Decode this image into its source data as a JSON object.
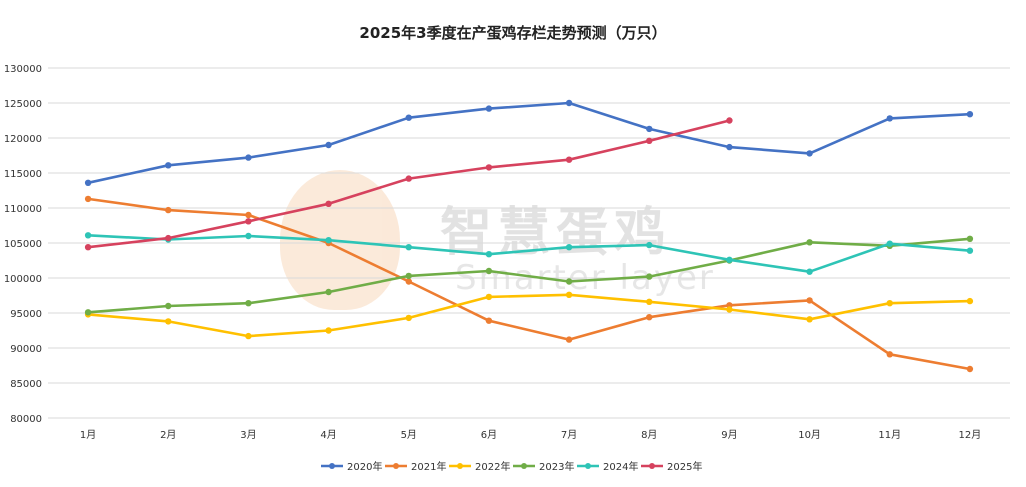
{
  "watermark": {
    "cn": "智慧蛋鸡",
    "en": "Smarter layer"
  },
  "chart_data": {
    "type": "line",
    "title": "2025年3季度在产蛋鸡存栏走势预测（万只）",
    "categories": [
      "1月",
      "2月",
      "3月",
      "4月",
      "5月",
      "6月",
      "7月",
      "8月",
      "9月",
      "10月",
      "11月",
      "12月"
    ],
    "ylim": [
      80000,
      130000
    ],
    "yticks": [
      80000,
      85000,
      90000,
      95000,
      100000,
      105000,
      110000,
      115000,
      120000,
      125000,
      130000
    ],
    "grid": true,
    "legend_position": "bottom",
    "series": [
      {
        "name": "2020年",
        "color": "#4472c4",
        "values": [
          113600,
          116100,
          117200,
          119000,
          122900,
          124200,
          125000,
          121300,
          118700,
          117800,
          122800,
          123400
        ]
      },
      {
        "name": "2021年",
        "color": "#ed7d31",
        "values": [
          111300,
          109700,
          109000,
          105000,
          99500,
          93900,
          91200,
          94400,
          96100,
          96800,
          89100,
          87000
        ]
      },
      {
        "name": "2022年",
        "color": "#ffc000",
        "values": [
          94800,
          93800,
          91700,
          92500,
          94300,
          97300,
          97600,
          96600,
          95500,
          94100,
          96400,
          96700
        ]
      },
      {
        "name": "2023年",
        "color": "#70ad47",
        "values": [
          95100,
          96000,
          96400,
          98000,
          100300,
          101000,
          99500,
          100200,
          102500,
          105100,
          104600,
          105600
        ]
      },
      {
        "name": "2024年",
        "color": "#2ec4b6",
        "values": [
          106100,
          105500,
          106000,
          105400,
          104400,
          103400,
          104400,
          104700,
          102600,
          100900,
          104900,
          103900
        ]
      },
      {
        "name": "2025年",
        "color": "#d6425e",
        "values": [
          104400,
          105700,
          108100,
          110600,
          114200,
          115800,
          116900,
          119600,
          122500,
          null,
          null,
          null
        ]
      }
    ]
  }
}
